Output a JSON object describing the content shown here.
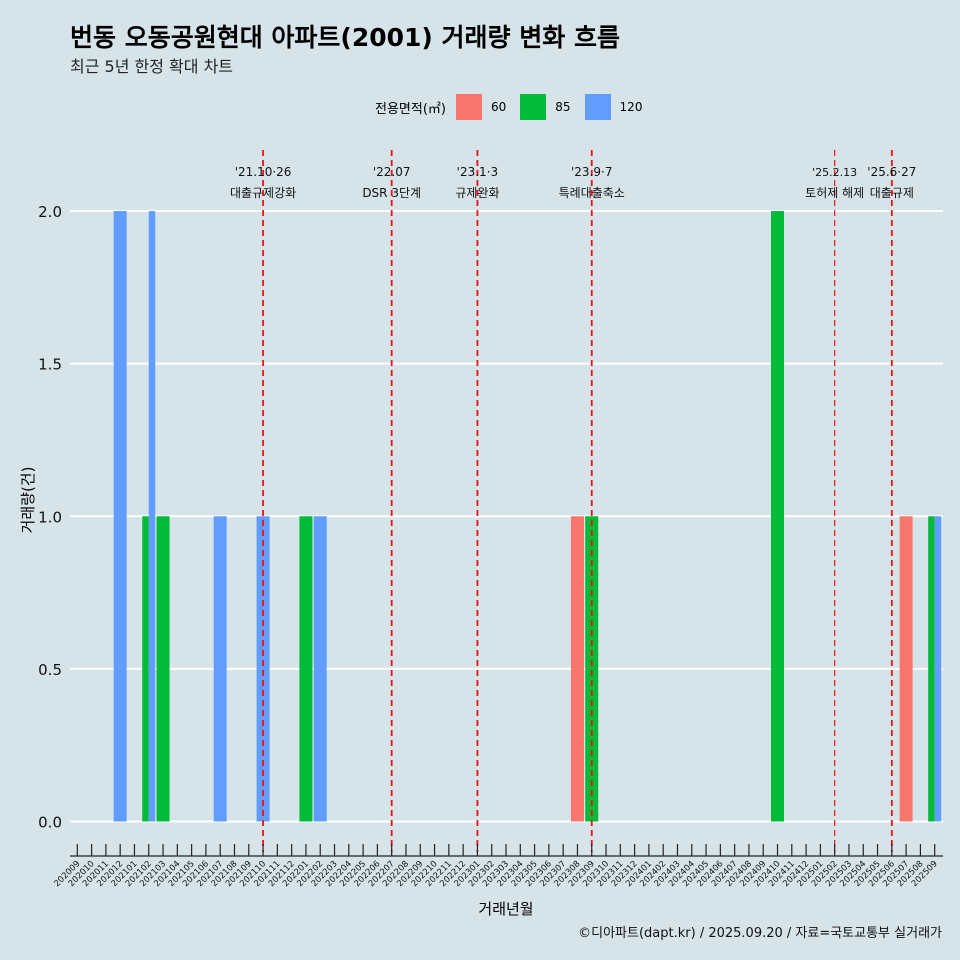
{
  "title": "번동 오동공원현대 아파트(2001) 거래량 변화 흐름",
  "subtitle": "최근 5년 한정 확대 차트",
  "legend": {
    "title": "전용면적(㎡)",
    "items": [
      {
        "label": "60",
        "color": "#f8766d"
      },
      {
        "label": "85",
        "color": "#00ba38"
      },
      {
        "label": "120",
        "color": "#619cff"
      }
    ]
  },
  "caption": "©디아파트(dapt.kr) / 2025.09.20 / 자료=국토교통부 실거래가",
  "chart_data": {
    "type": "bar",
    "title": "번동 오동공원현대 아파트(2001) 거래량 변화 흐름",
    "xlabel": "거래년월",
    "ylabel": "거래량(건)",
    "ylim": [
      -0.1,
      2.2
    ],
    "yticks": [
      0.0,
      0.5,
      1.0,
      1.5,
      2.0
    ],
    "ytick_labels": [
      "0.0",
      "0.5",
      "1.0",
      "1.5",
      "2.0"
    ],
    "categories": [
      "202009",
      "202010",
      "202011",
      "202012",
      "202101",
      "202102",
      "202103",
      "202104",
      "202105",
      "202106",
      "202107",
      "202108",
      "202109",
      "202110",
      "202111",
      "202112",
      "202201",
      "202202",
      "202203",
      "202204",
      "202205",
      "202206",
      "202207",
      "202208",
      "202209",
      "202210",
      "202211",
      "202212",
      "202301",
      "202302",
      "202303",
      "202304",
      "202305",
      "202306",
      "202307",
      "202308",
      "202309",
      "202310",
      "202311",
      "202312",
      "202401",
      "202402",
      "202403",
      "202404",
      "202405",
      "202406",
      "202407",
      "202408",
      "202409",
      "202410",
      "202411",
      "202412",
      "202501",
      "202502",
      "202503",
      "202504",
      "202505",
      "202506",
      "202507",
      "202508",
      "202509"
    ],
    "series": [
      {
        "name": "60",
        "color": "#f8766d",
        "points": [
          {
            "month": "202308",
            "value": 1
          },
          {
            "month": "202507",
            "value": 1
          }
        ]
      },
      {
        "name": "85",
        "color": "#00ba38",
        "points": [
          {
            "month": "202102",
            "value": 1
          },
          {
            "month": "202103",
            "value": 1
          },
          {
            "month": "202201",
            "value": 1
          },
          {
            "month": "202309",
            "value": 1
          },
          {
            "month": "202410",
            "value": 2
          },
          {
            "month": "202509",
            "value": 1
          }
        ]
      },
      {
        "name": "120",
        "color": "#619cff",
        "points": [
          {
            "month": "202012",
            "value": 2
          },
          {
            "month": "202102",
            "value": 2
          },
          {
            "month": "202107",
            "value": 1
          },
          {
            "month": "202110",
            "value": 1
          },
          {
            "month": "202202",
            "value": 1
          },
          {
            "month": "202509",
            "value": 1
          }
        ]
      }
    ],
    "annotations": [
      {
        "x": 13.0,
        "date": "'21.10·26",
        "text": "대출규제강화",
        "style": "dashed-bold"
      },
      {
        "x": 22.0,
        "date": "'22.07",
        "text": "DSR 3단계",
        "style": "dashed-bold"
      },
      {
        "x": 28.0,
        "date": "'23.1·3",
        "text": "규제완화",
        "style": "dashed-bold"
      },
      {
        "x": 36.0,
        "date": "'23.9·7",
        "text": "특례대출축소",
        "style": "dashed-bold"
      },
      {
        "x": 53.0,
        "date": "'25.2.13",
        "text": "토허제 해제",
        "style": "dashed-thin"
      },
      {
        "x": 57.0,
        "date": "'25.6·27",
        "text": "대출규제",
        "style": "dashed-bold"
      }
    ]
  }
}
